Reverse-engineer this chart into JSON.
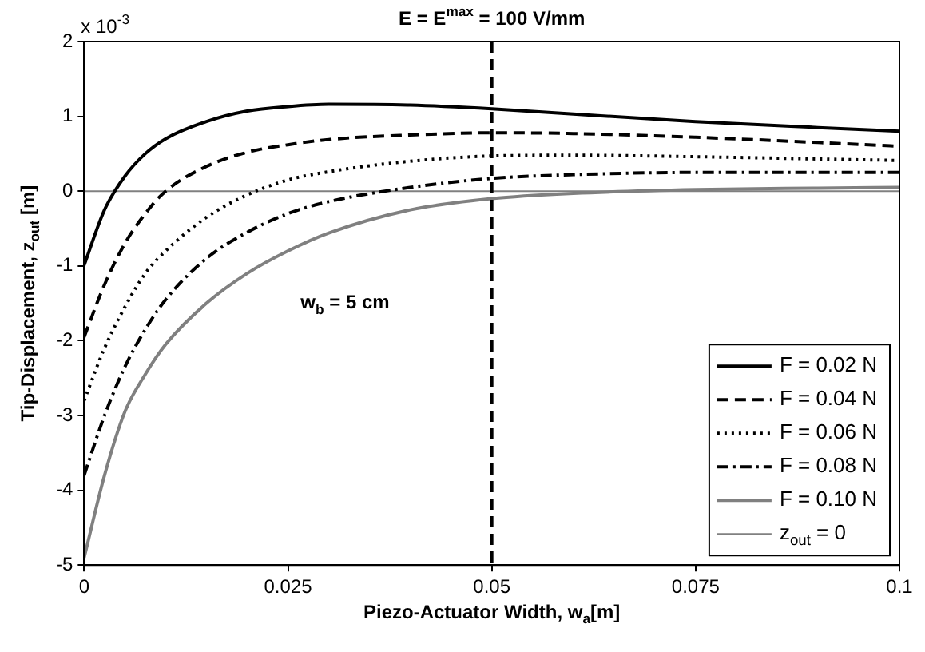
{
  "chart_data": {
    "type": "line",
    "title": "E = E$^{max}$ = 100 V/mm",
    "xlabel": "Piezo-Actuator Width, w$_{a}$[m]",
    "ylabel": "Tip-Displacement, z$_{out}$ [m]",
    "x": [
      0,
      0.0025,
      0.005,
      0.0075,
      0.01,
      0.015,
      0.02,
      0.025,
      0.03,
      0.04,
      0.05,
      0.06,
      0.075,
      0.09,
      0.1
    ],
    "series": [
      {
        "name": "F = 0.02 N",
        "color": "#000000",
        "line_style": "solid",
        "values": [
          -0.99,
          -0.25,
          0.2,
          0.5,
          0.7,
          0.93,
          1.07,
          1.13,
          1.16,
          1.15,
          1.1,
          1.03,
          0.93,
          0.85,
          0.8
        ]
      },
      {
        "name": "F = 0.04 N",
        "color": "#000000",
        "line_style": "dashed",
        "values": [
          -1.95,
          -1.25,
          -0.7,
          -0.3,
          0.0,
          0.33,
          0.52,
          0.62,
          0.69,
          0.75,
          0.78,
          0.77,
          0.72,
          0.65,
          0.6
        ]
      },
      {
        "name": "F = 0.06 N",
        "color": "#000000",
        "line_style": "dotted",
        "values": [
          -2.8,
          -2.1,
          -1.55,
          -1.1,
          -0.8,
          -0.35,
          -0.05,
          0.15,
          0.26,
          0.4,
          0.47,
          0.48,
          0.46,
          0.43,
          0.41
        ]
      },
      {
        "name": "F = 0.08 N",
        "color": "#000000",
        "line_style": "dashdot",
        "values": [
          -3.8,
          -3.0,
          -2.35,
          -1.85,
          -1.45,
          -0.9,
          -0.55,
          -0.3,
          -0.14,
          0.05,
          0.17,
          0.22,
          0.25,
          0.25,
          0.25
        ]
      },
      {
        "name": "F = 0.10 N",
        "color": "#808080",
        "line_style": "solid",
        "values": [
          -4.9,
          -3.8,
          -2.95,
          -2.45,
          -2.05,
          -1.5,
          -1.1,
          -0.8,
          -0.56,
          -0.25,
          -0.1,
          -0.03,
          0.02,
          0.04,
          0.05
        ]
      },
      {
        "name": "z$_{out}$ = 0",
        "color": "#808080",
        "line_style": "solid",
        "x": [
          0,
          0.1
        ],
        "values": [
          0,
          0
        ]
      }
    ],
    "xlim": [
      0,
      0.1
    ],
    "xticks": [
      0,
      0.025,
      0.05,
      0.075,
      0.1
    ],
    "ylim": [
      -5,
      2
    ],
    "yticks": [
      -5,
      -4,
      -3,
      -2,
      -1,
      0,
      1,
      2
    ],
    "ref_lines": [
      {
        "axis": "x",
        "value": 0.05,
        "color": "#000000",
        "line_style": "dashed"
      }
    ],
    "annotations": [
      "x 10$^{-3}$",
      "w$_{b}$ = 5 cm"
    ],
    "grid": false,
    "legend": "bottom right",
    "marker": "none"
  }
}
